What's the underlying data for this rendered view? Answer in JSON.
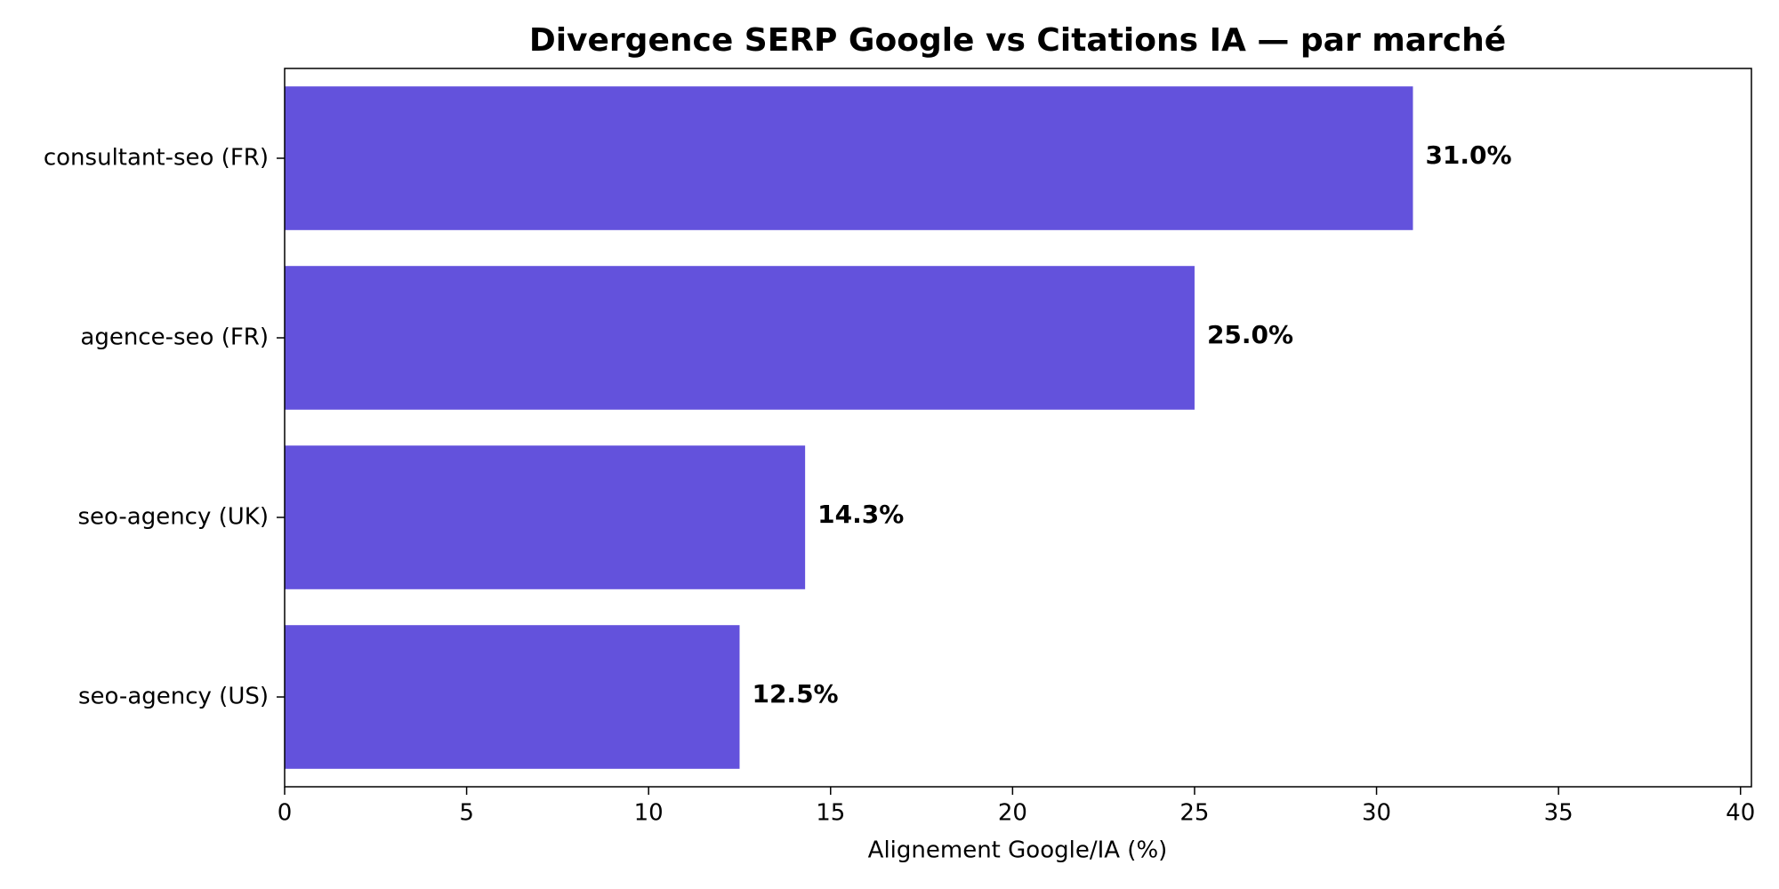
{
  "chart_data": {
    "type": "barh",
    "title": "Divergence SERP Google vs Citations IA — par marché",
    "x_label": "Alignement Google/IA (%)",
    "categories": [
      "consultant-seo (FR)",
      "agence-seo (FR)",
      "seo-agency (UK)",
      "seo-agency (US)"
    ],
    "values": [
      31.0,
      25.0,
      14.3,
      12.5
    ],
    "value_labels": [
      "31.0%",
      "25.0%",
      "14.3%",
      "12.5%"
    ],
    "color": "#6352dc",
    "xlim": [
      0,
      40.3
    ],
    "xticks": [
      0,
      5,
      10,
      15,
      20,
      25,
      30,
      35,
      40
    ]
  }
}
